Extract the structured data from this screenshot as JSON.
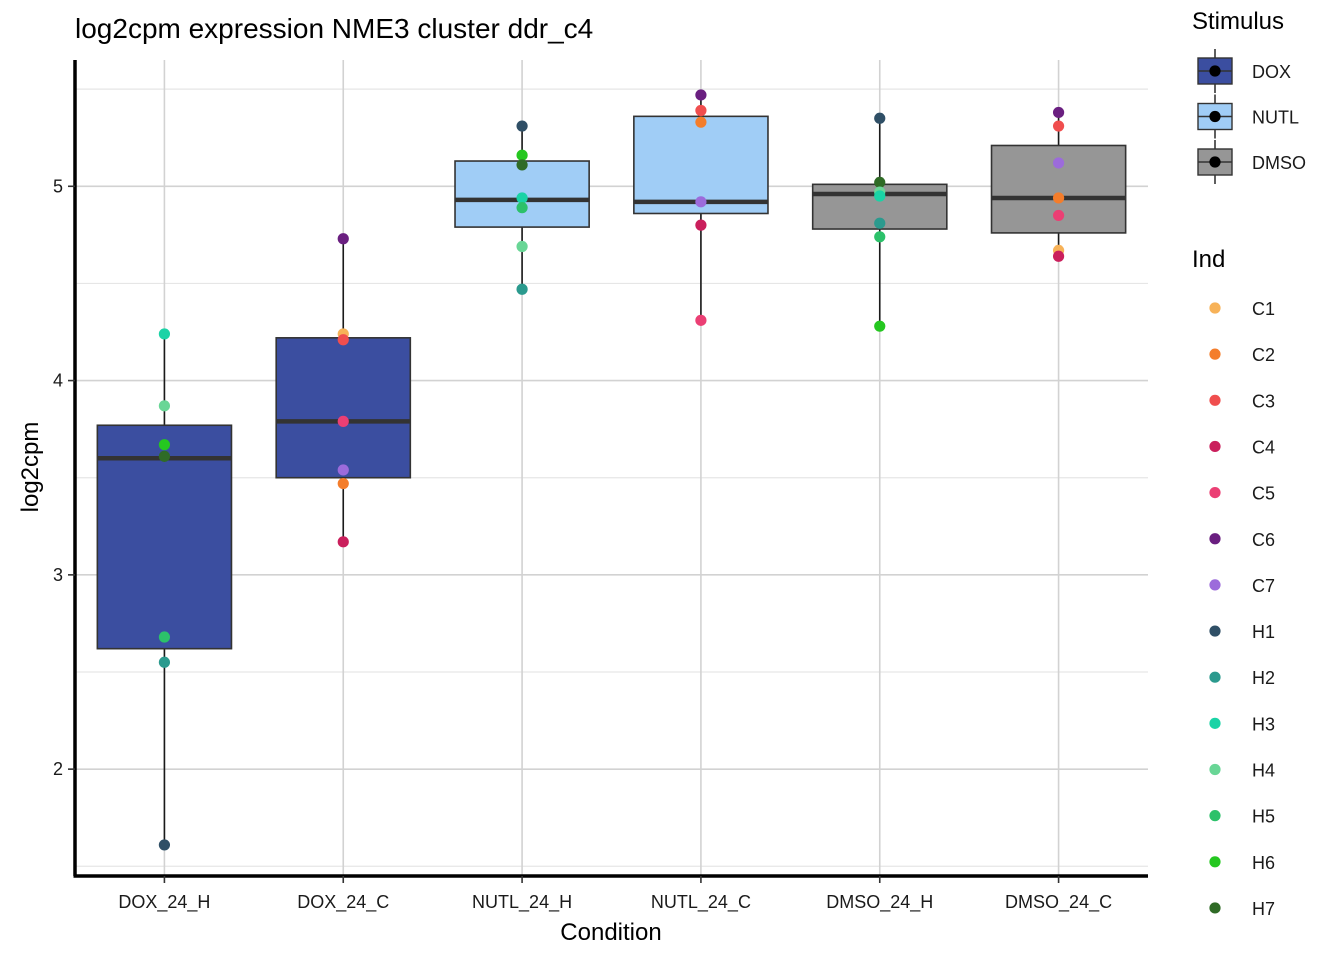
{
  "chart_data": {
    "type": "boxplot",
    "title": "log2cpm expression NME3 cluster ddr_c4",
    "xlabel": "Condition",
    "ylabel": "log2cpm",
    "ylim": [
      1.45,
      5.65
    ],
    "yticks": [
      2,
      3,
      4,
      5
    ],
    "grid": true,
    "categories": [
      "DOX_24_H",
      "DOX_24_C",
      "NUTL_24_H",
      "NUTL_24_C",
      "DMSO_24_H",
      "DMSO_24_C"
    ],
    "boxes": [
      {
        "category": "DOX_24_H",
        "stimulus": "DOX",
        "min": 1.61,
        "q1": 2.62,
        "median": 3.6,
        "q3": 3.77,
        "max": 4.24
      },
      {
        "category": "DOX_24_C",
        "stimulus": "DOX",
        "min": 3.17,
        "q1": 3.5,
        "median": 3.79,
        "q3": 4.22,
        "max": 4.73
      },
      {
        "category": "NUTL_24_H",
        "stimulus": "NUTL",
        "min": 4.47,
        "q1": 4.79,
        "median": 4.93,
        "q3": 5.13,
        "max": 5.31
      },
      {
        "category": "NUTL_24_C",
        "stimulus": "NUTL",
        "min": 4.31,
        "q1": 4.86,
        "median": 4.92,
        "q3": 5.36,
        "max": 5.47
      },
      {
        "category": "DMSO_24_H",
        "stimulus": "DMSO",
        "min": 4.28,
        "q1": 4.78,
        "median": 4.96,
        "q3": 5.01,
        "max": 5.35
      },
      {
        "category": "DMSO_24_C",
        "stimulus": "DMSO",
        "min": 4.64,
        "q1": 4.76,
        "median": 4.94,
        "q3": 5.21,
        "max": 5.38
      }
    ],
    "points": [
      {
        "category": "DOX_24_H",
        "ind": "H3",
        "y": 4.24
      },
      {
        "category": "DOX_24_H",
        "ind": "H4",
        "y": 3.87
      },
      {
        "category": "DOX_24_H",
        "ind": "H6",
        "y": 3.67
      },
      {
        "category": "DOX_24_H",
        "ind": "H7",
        "y": 3.61
      },
      {
        "category": "DOX_24_H",
        "ind": "H5",
        "y": 2.68
      },
      {
        "category": "DOX_24_H",
        "ind": "H2",
        "y": 2.55
      },
      {
        "category": "DOX_24_H",
        "ind": "H1",
        "y": 1.61
      },
      {
        "category": "DOX_24_C",
        "ind": "C6",
        "y": 4.73
      },
      {
        "category": "DOX_24_C",
        "ind": "C1",
        "y": 4.24
      },
      {
        "category": "DOX_24_C",
        "ind": "C3",
        "y": 4.21
      },
      {
        "category": "DOX_24_C",
        "ind": "C5",
        "y": 3.79
      },
      {
        "category": "DOX_24_C",
        "ind": "C7",
        "y": 3.54
      },
      {
        "category": "DOX_24_C",
        "ind": "C2",
        "y": 3.47
      },
      {
        "category": "DOX_24_C",
        "ind": "C4",
        "y": 3.17
      },
      {
        "category": "NUTL_24_H",
        "ind": "H1",
        "y": 5.31
      },
      {
        "category": "NUTL_24_H",
        "ind": "H6",
        "y": 5.16
      },
      {
        "category": "NUTL_24_H",
        "ind": "H7",
        "y": 5.11
      },
      {
        "category": "NUTL_24_H",
        "ind": "H3",
        "y": 4.94
      },
      {
        "category": "NUTL_24_H",
        "ind": "H5",
        "y": 4.89
      },
      {
        "category": "NUTL_24_H",
        "ind": "H4",
        "y": 4.69
      },
      {
        "category": "NUTL_24_H",
        "ind": "H2",
        "y": 4.47
      },
      {
        "category": "NUTL_24_C",
        "ind": "C6",
        "y": 5.47
      },
      {
        "category": "NUTL_24_C",
        "ind": "C3",
        "y": 5.39
      },
      {
        "category": "NUTL_24_C",
        "ind": "C2",
        "y": 5.33
      },
      {
        "category": "NUTL_24_C",
        "ind": "C7",
        "y": 4.92
      },
      {
        "category": "NUTL_24_C",
        "ind": "C4",
        "y": 4.8
      },
      {
        "category": "NUTL_24_C",
        "ind": "C5",
        "y": 4.31
      },
      {
        "category": "DMSO_24_H",
        "ind": "H1",
        "y": 5.35
      },
      {
        "category": "DMSO_24_H",
        "ind": "H7",
        "y": 5.02
      },
      {
        "category": "DMSO_24_H",
        "ind": "H4",
        "y": 4.97
      },
      {
        "category": "DMSO_24_H",
        "ind": "H3",
        "y": 4.95
      },
      {
        "category": "DMSO_24_H",
        "ind": "H2",
        "y": 4.81
      },
      {
        "category": "DMSO_24_H",
        "ind": "H5",
        "y": 4.74
      },
      {
        "category": "DMSO_24_H",
        "ind": "H6",
        "y": 4.28
      },
      {
        "category": "DMSO_24_C",
        "ind": "C6",
        "y": 5.38
      },
      {
        "category": "DMSO_24_C",
        "ind": "C3",
        "y": 5.31
      },
      {
        "category": "DMSO_24_C",
        "ind": "C7",
        "y": 5.12
      },
      {
        "category": "DMSO_24_C",
        "ind": "C2",
        "y": 4.94
      },
      {
        "category": "DMSO_24_C",
        "ind": "C5",
        "y": 4.85
      },
      {
        "category": "DMSO_24_C",
        "ind": "C1",
        "y": 4.67
      },
      {
        "category": "DMSO_24_C",
        "ind": "C4",
        "y": 4.64
      }
    ],
    "legend_stimulus": {
      "title": "Stimulus",
      "entries": [
        {
          "label": "DOX",
          "color": "#3B4EA0"
        },
        {
          "label": "NUTL",
          "color": "#A0CDF6"
        },
        {
          "label": "DMSO",
          "color": "#969696"
        }
      ]
    },
    "legend_ind": {
      "title": "Ind",
      "entries": [
        {
          "label": "C1",
          "color": "#F7B258"
        },
        {
          "label": "C2",
          "color": "#F47D2B"
        },
        {
          "label": "C3",
          "color": "#F04E4E"
        },
        {
          "label": "C4",
          "color": "#CA1F5C"
        },
        {
          "label": "C5",
          "color": "#EB3F74"
        },
        {
          "label": "C6",
          "color": "#6A1F80"
        },
        {
          "label": "C7",
          "color": "#9C6BDB"
        },
        {
          "label": "H1",
          "color": "#2F4F66"
        },
        {
          "label": "H2",
          "color": "#2B9A8E"
        },
        {
          "label": "H3",
          "color": "#1AD3A6"
        },
        {
          "label": "H4",
          "color": "#69D696"
        },
        {
          "label": "H5",
          "color": "#2CC16A"
        },
        {
          "label": "H6",
          "color": "#25C720"
        },
        {
          "label": "H7",
          "color": "#2F6B26"
        }
      ]
    }
  }
}
